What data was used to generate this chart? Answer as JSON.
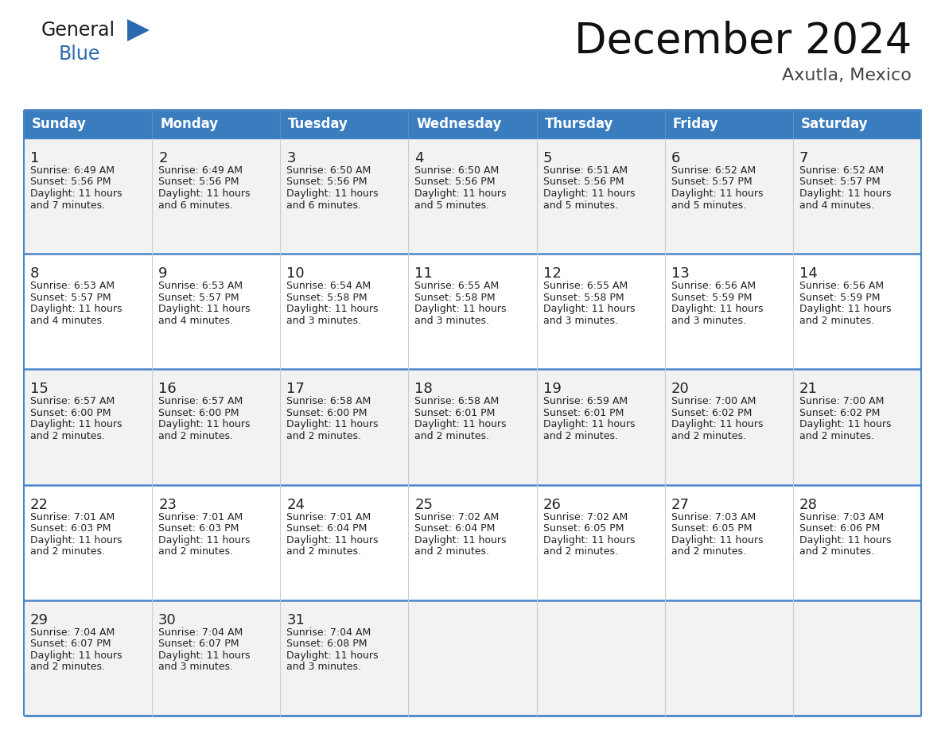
{
  "title": "December 2024",
  "subtitle": "Axutla, Mexico",
  "header_color": "#3a7dbf",
  "header_text_color": "#ffffff",
  "days_of_week": [
    "Sunday",
    "Monday",
    "Tuesday",
    "Wednesday",
    "Thursday",
    "Friday",
    "Saturday"
  ],
  "weeks": [
    [
      {
        "day": 1,
        "sunrise": "6:49 AM",
        "sunset": "5:56 PM",
        "daylight": "11 hours and 7 minutes."
      },
      {
        "day": 2,
        "sunrise": "6:49 AM",
        "sunset": "5:56 PM",
        "daylight": "11 hours and 6 minutes."
      },
      {
        "day": 3,
        "sunrise": "6:50 AM",
        "sunset": "5:56 PM",
        "daylight": "11 hours and 6 minutes."
      },
      {
        "day": 4,
        "sunrise": "6:50 AM",
        "sunset": "5:56 PM",
        "daylight": "11 hours and 5 minutes."
      },
      {
        "day": 5,
        "sunrise": "6:51 AM",
        "sunset": "5:56 PM",
        "daylight": "11 hours and 5 minutes."
      },
      {
        "day": 6,
        "sunrise": "6:52 AM",
        "sunset": "5:57 PM",
        "daylight": "11 hours and 5 minutes."
      },
      {
        "day": 7,
        "sunrise": "6:52 AM",
        "sunset": "5:57 PM",
        "daylight": "11 hours and 4 minutes."
      }
    ],
    [
      {
        "day": 8,
        "sunrise": "6:53 AM",
        "sunset": "5:57 PM",
        "daylight": "11 hours and 4 minutes."
      },
      {
        "day": 9,
        "sunrise": "6:53 AM",
        "sunset": "5:57 PM",
        "daylight": "11 hours and 4 minutes."
      },
      {
        "day": 10,
        "sunrise": "6:54 AM",
        "sunset": "5:58 PM",
        "daylight": "11 hours and 3 minutes."
      },
      {
        "day": 11,
        "sunrise": "6:55 AM",
        "sunset": "5:58 PM",
        "daylight": "11 hours and 3 minutes."
      },
      {
        "day": 12,
        "sunrise": "6:55 AM",
        "sunset": "5:58 PM",
        "daylight": "11 hours and 3 minutes."
      },
      {
        "day": 13,
        "sunrise": "6:56 AM",
        "sunset": "5:59 PM",
        "daylight": "11 hours and 3 minutes."
      },
      {
        "day": 14,
        "sunrise": "6:56 AM",
        "sunset": "5:59 PM",
        "daylight": "11 hours and 2 minutes."
      }
    ],
    [
      {
        "day": 15,
        "sunrise": "6:57 AM",
        "sunset": "6:00 PM",
        "daylight": "11 hours and 2 minutes."
      },
      {
        "day": 16,
        "sunrise": "6:57 AM",
        "sunset": "6:00 PM",
        "daylight": "11 hours and 2 minutes."
      },
      {
        "day": 17,
        "sunrise": "6:58 AM",
        "sunset": "6:00 PM",
        "daylight": "11 hours and 2 minutes."
      },
      {
        "day": 18,
        "sunrise": "6:58 AM",
        "sunset": "6:01 PM",
        "daylight": "11 hours and 2 minutes."
      },
      {
        "day": 19,
        "sunrise": "6:59 AM",
        "sunset": "6:01 PM",
        "daylight": "11 hours and 2 minutes."
      },
      {
        "day": 20,
        "sunrise": "7:00 AM",
        "sunset": "6:02 PM",
        "daylight": "11 hours and 2 minutes."
      },
      {
        "day": 21,
        "sunrise": "7:00 AM",
        "sunset": "6:02 PM",
        "daylight": "11 hours and 2 minutes."
      }
    ],
    [
      {
        "day": 22,
        "sunrise": "7:01 AM",
        "sunset": "6:03 PM",
        "daylight": "11 hours and 2 minutes."
      },
      {
        "day": 23,
        "sunrise": "7:01 AM",
        "sunset": "6:03 PM",
        "daylight": "11 hours and 2 minutes."
      },
      {
        "day": 24,
        "sunrise": "7:01 AM",
        "sunset": "6:04 PM",
        "daylight": "11 hours and 2 minutes."
      },
      {
        "day": 25,
        "sunrise": "7:02 AM",
        "sunset": "6:04 PM",
        "daylight": "11 hours and 2 minutes."
      },
      {
        "day": 26,
        "sunrise": "7:02 AM",
        "sunset": "6:05 PM",
        "daylight": "11 hours and 2 minutes."
      },
      {
        "day": 27,
        "sunrise": "7:03 AM",
        "sunset": "6:05 PM",
        "daylight": "11 hours and 2 minutes."
      },
      {
        "day": 28,
        "sunrise": "7:03 AM",
        "sunset": "6:06 PM",
        "daylight": "11 hours and 2 minutes."
      }
    ],
    [
      {
        "day": 29,
        "sunrise": "7:04 AM",
        "sunset": "6:07 PM",
        "daylight": "11 hours and 2 minutes."
      },
      {
        "day": 30,
        "sunrise": "7:04 AM",
        "sunset": "6:07 PM",
        "daylight": "11 hours and 3 minutes."
      },
      {
        "day": 31,
        "sunrise": "7:04 AM",
        "sunset": "6:08 PM",
        "daylight": "11 hours and 3 minutes."
      },
      null,
      null,
      null,
      null
    ]
  ],
  "cell_bg_white": "#ffffff",
  "cell_bg_light": "#f2f2f2",
  "border_color": "#4a86c8",
  "divider_color": "#4a86c8",
  "text_color": "#222222",
  "logo_general_color": "#1a1a1a",
  "logo_blue_color": "#2a6ab0",
  "title_fontsize": 38,
  "subtitle_fontsize": 16,
  "header_fontsize": 12,
  "day_num_fontsize": 13,
  "cell_text_fontsize": 9
}
